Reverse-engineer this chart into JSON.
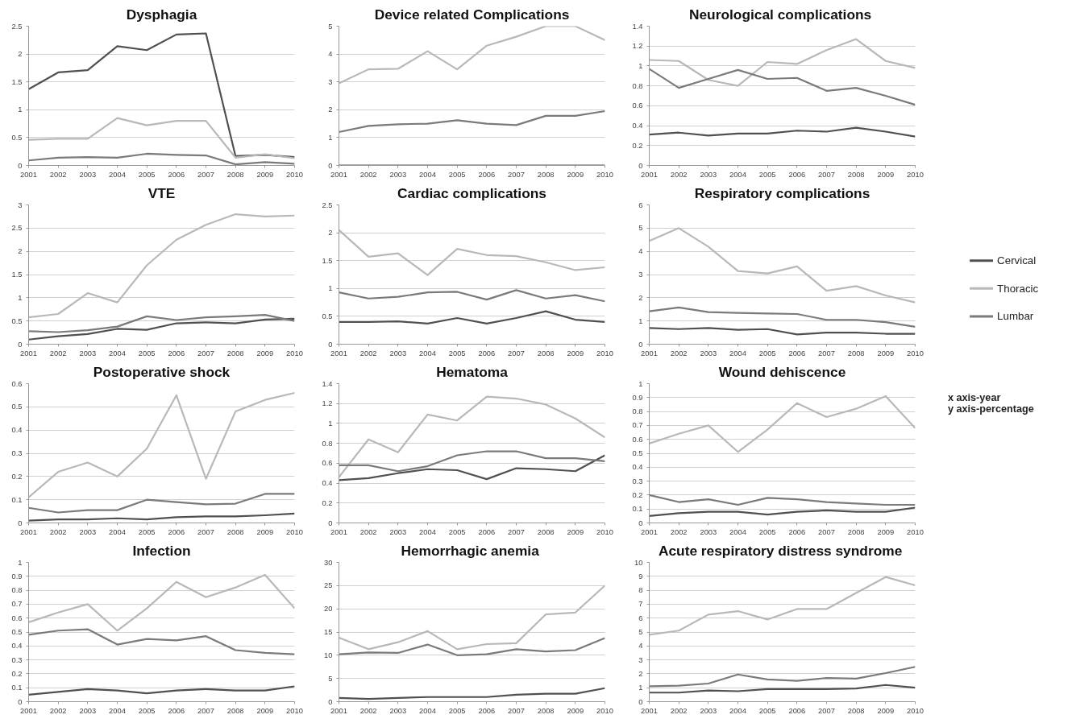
{
  "chart_data": [
    {
      "type": "line",
      "title": "Dysphagia",
      "categories": [
        "2001",
        "2002",
        "2003",
        "2004",
        "2005",
        "2006",
        "2007",
        "2008",
        "2009",
        "2010"
      ],
      "ylim": [
        0,
        2.5
      ],
      "yticks": [
        0,
        0.5,
        1,
        1.5,
        2,
        2.5
      ],
      "grid": "y",
      "legend": "right",
      "series": [
        {
          "name": "Cervical",
          "color": "#505050",
          "values": [
            1.37,
            1.67,
            1.71,
            2.14,
            2.07,
            2.35,
            2.37,
            0.17,
            0.19,
            0.15
          ]
        },
        {
          "name": "Thoracic",
          "color": "#b8b8b8",
          "values": [
            0.46,
            0.48,
            0.48,
            0.85,
            0.72,
            0.8,
            0.8,
            0.14,
            0.2,
            0.13
          ]
        },
        {
          "name": "Lumbar",
          "color": "#7a7a7a",
          "values": [
            0.09,
            0.14,
            0.15,
            0.14,
            0.21,
            0.19,
            0.18,
            0.02,
            0.06,
            0.03
          ]
        }
      ]
    },
    {
      "type": "line",
      "title": "Device related Complications",
      "categories": [
        "2001",
        "2002",
        "2003",
        "2004",
        "2005",
        "2006",
        "2007",
        "2008",
        "2009",
        "2010"
      ],
      "ylim": [
        0,
        5
      ],
      "yticks": [
        0,
        1,
        2,
        3,
        4,
        5
      ],
      "grid": "y",
      "series": [
        {
          "color": "#505050",
          "values": [
            0,
            0,
            0,
            0,
            0,
            0,
            0,
            0,
            0,
            0
          ]
        },
        {
          "color": "#b8b8b8",
          "values": [
            2.95,
            3.45,
            3.47,
            4.1,
            3.45,
            4.3,
            4.62,
            5.0,
            5.0,
            4.5
          ]
        },
        {
          "color": "#7a7a7a",
          "values": [
            1.2,
            1.42,
            1.48,
            1.5,
            1.62,
            1.5,
            1.45,
            1.78,
            1.78,
            1.95
          ]
        }
      ]
    },
    {
      "type": "line",
      "title": "Neurological  complications",
      "categories": [
        "2001",
        "2002",
        "2003",
        "2004",
        "2005",
        "2006",
        "2007",
        "2008",
        "2009",
        "2010"
      ],
      "ylim": [
        0,
        1.4
      ],
      "yticks": [
        0,
        0.2,
        0.4,
        0.6,
        0.8,
        1,
        1.2,
        1.4
      ],
      "grid": "y",
      "series": [
        {
          "color": "#505050",
          "values": [
            0.31,
            0.33,
            0.3,
            0.32,
            0.32,
            0.35,
            0.34,
            0.38,
            0.34,
            0.29
          ]
        },
        {
          "color": "#b8b8b8",
          "values": [
            1.06,
            1.05,
            0.86,
            0.8,
            1.04,
            1.02,
            1.16,
            1.27,
            1.05,
            0.98
          ]
        },
        {
          "color": "#7a7a7a",
          "values": [
            0.97,
            0.78,
            0.87,
            0.96,
            0.87,
            0.88,
            0.75,
            0.78,
            0.7,
            0.61
          ]
        }
      ]
    },
    {
      "type": "line",
      "title": "VTE",
      "categories": [
        "2001",
        "2002",
        "2003",
        "2004",
        "2005",
        "2006",
        "2007",
        "2008",
        "2009",
        "2010"
      ],
      "ylim": [
        0,
        3
      ],
      "yticks": [
        0,
        0.5,
        1,
        1.5,
        2,
        2.5,
        3
      ],
      "grid": "y",
      "series": [
        {
          "color": "#505050",
          "values": [
            0.1,
            0.17,
            0.22,
            0.33,
            0.31,
            0.45,
            0.47,
            0.45,
            0.53,
            0.55
          ]
        },
        {
          "color": "#b8b8b8",
          "values": [
            0.58,
            0.65,
            1.1,
            0.9,
            1.7,
            2.25,
            2.57,
            2.8,
            2.75,
            2.77
          ]
        },
        {
          "color": "#7a7a7a",
          "values": [
            0.28,
            0.26,
            0.3,
            0.38,
            0.6,
            0.52,
            0.58,
            0.6,
            0.63,
            0.5
          ]
        }
      ]
    },
    {
      "type": "line",
      "title": "Cardiac complications",
      "categories": [
        "2001",
        "2002",
        "2003",
        "2004",
        "2005",
        "2006",
        "2007",
        "2008",
        "2009",
        "2010"
      ],
      "ylim": [
        0,
        2.5
      ],
      "yticks": [
        0,
        0.5,
        1,
        1.5,
        2,
        2.5
      ],
      "grid": "y",
      "series": [
        {
          "color": "#505050",
          "values": [
            0.4,
            0.4,
            0.41,
            0.37,
            0.47,
            0.37,
            0.47,
            0.59,
            0.44,
            0.4
          ]
        },
        {
          "color": "#b8b8b8",
          "values": [
            2.05,
            1.57,
            1.63,
            1.24,
            1.71,
            1.6,
            1.58,
            1.47,
            1.33,
            1.38
          ]
        },
        {
          "color": "#7a7a7a",
          "values": [
            0.93,
            0.82,
            0.85,
            0.93,
            0.94,
            0.8,
            0.97,
            0.82,
            0.88,
            0.77
          ]
        }
      ]
    },
    {
      "type": "line",
      "title": "Respiratory complications",
      "categories": [
        "2001",
        "2002",
        "2003",
        "2004",
        "2005",
        "2006",
        "2007",
        "2008",
        "2009",
        "2010"
      ],
      "ylim": [
        0,
        6
      ],
      "yticks": [
        0,
        1,
        2,
        3,
        4,
        5,
        6
      ],
      "grid": "y",
      "series": [
        {
          "color": "#505050",
          "values": [
            0.7,
            0.65,
            0.7,
            0.62,
            0.65,
            0.42,
            0.5,
            0.5,
            0.45,
            0.45
          ]
        },
        {
          "color": "#b8b8b8",
          "values": [
            4.45,
            5.0,
            4.2,
            3.15,
            3.05,
            3.35,
            2.3,
            2.5,
            2.1,
            1.8
          ]
        },
        {
          "color": "#7a7a7a",
          "values": [
            1.42,
            1.58,
            1.38,
            1.35,
            1.32,
            1.3,
            1.05,
            1.05,
            0.95,
            0.75
          ]
        }
      ]
    },
    {
      "type": "line",
      "title": "Postoperative shock",
      "categories": [
        "2001",
        "2002",
        "2003",
        "2004",
        "2005",
        "2006",
        "2007",
        "2008",
        "2009",
        "2010"
      ],
      "ylim": [
        0,
        0.6
      ],
      "yticks": [
        0,
        0.1,
        0.2,
        0.3,
        0.4,
        0.5,
        0.6
      ],
      "grid": "y",
      "series": [
        {
          "color": "#505050",
          "values": [
            0.01,
            0.015,
            0.015,
            0.02,
            0.015,
            0.025,
            0.028,
            0.028,
            0.033,
            0.04
          ]
        },
        {
          "color": "#b8b8b8",
          "values": [
            0.11,
            0.22,
            0.26,
            0.2,
            0.32,
            0.55,
            0.19,
            0.48,
            0.53,
            0.56
          ]
        },
        {
          "color": "#7a7a7a",
          "values": [
            0.065,
            0.045,
            0.055,
            0.055,
            0.1,
            0.09,
            0.08,
            0.083,
            0.125,
            0.125
          ]
        }
      ]
    },
    {
      "type": "line",
      "title": "Hematoma",
      "categories": [
        "2001",
        "2002",
        "2003",
        "2004",
        "2005",
        "2006",
        "2007",
        "2008",
        "2009",
        "2010"
      ],
      "ylim": [
        0,
        1.4
      ],
      "yticks": [
        0,
        0.2,
        0.4,
        0.6,
        0.8,
        1,
        1.2,
        1.4
      ],
      "grid": "y",
      "series": [
        {
          "color": "#505050",
          "values": [
            0.43,
            0.45,
            0.5,
            0.54,
            0.53,
            0.44,
            0.55,
            0.54,
            0.52,
            0.68
          ]
        },
        {
          "color": "#b8b8b8",
          "values": [
            0.46,
            0.84,
            0.71,
            1.09,
            1.03,
            1.27,
            1.25,
            1.19,
            1.05,
            0.86
          ]
        },
        {
          "color": "#7a7a7a",
          "values": [
            0.58,
            0.58,
            0.52,
            0.57,
            0.68,
            0.72,
            0.72,
            0.65,
            0.65,
            0.62
          ]
        }
      ]
    },
    {
      "type": "line",
      "title": "Wound dehiscence",
      "categories": [
        "2001",
        "2002",
        "2003",
        "2004",
        "2005",
        "2006",
        "2007",
        "2008",
        "2009",
        "2010"
      ],
      "ylim": [
        0,
        1
      ],
      "yticks": [
        0,
        0.1,
        0.2,
        0.3,
        0.4,
        0.5,
        0.6,
        0.7,
        0.8,
        0.9,
        1
      ],
      "grid": "y",
      "annotations": [
        "x axis-year",
        "y axis-percentage"
      ],
      "series": [
        {
          "color": "#505050",
          "values": [
            0.05,
            0.07,
            0.08,
            0.08,
            0.06,
            0.08,
            0.09,
            0.08,
            0.08,
            0.11
          ]
        },
        {
          "color": "#b8b8b8",
          "values": [
            0.57,
            0.64,
            0.7,
            0.51,
            0.67,
            0.86,
            0.76,
            0.82,
            0.91,
            0.68
          ]
        },
        {
          "color": "#7a7a7a",
          "values": [
            0.2,
            0.15,
            0.17,
            0.13,
            0.18,
            0.17,
            0.15,
            0.14,
            0.13,
            0.13
          ]
        }
      ]
    },
    {
      "type": "line",
      "title": "Infection",
      "categories": [
        "2001",
        "2002",
        "2003",
        "2004",
        "2005",
        "2006",
        "2007",
        "2008",
        "2009",
        "2010"
      ],
      "ylim": [
        0,
        1
      ],
      "yticks": [
        0,
        0.1,
        0.2,
        0.3,
        0.4,
        0.5,
        0.6,
        0.7,
        0.8,
        0.9,
        1
      ],
      "grid": "y",
      "series": [
        {
          "color": "#505050",
          "values": [
            0.05,
            0.07,
            0.09,
            0.08,
            0.06,
            0.08,
            0.09,
            0.08,
            0.08,
            0.11
          ]
        },
        {
          "color": "#b8b8b8",
          "values": [
            0.57,
            0.64,
            0.7,
            0.51,
            0.67,
            0.86,
            0.75,
            0.82,
            0.91,
            0.67
          ]
        },
        {
          "color": "#7a7a7a",
          "values": [
            0.48,
            0.51,
            0.52,
            0.41,
            0.45,
            0.44,
            0.47,
            0.37,
            0.35,
            0.34
          ]
        }
      ]
    },
    {
      "type": "line",
      "title": "Hemorrhagic  anemia",
      "categories": [
        "2001",
        "2002",
        "2003",
        "2004",
        "2005",
        "2006",
        "2007",
        "2008",
        "2009",
        "2010"
      ],
      "ylim": [
        0,
        30
      ],
      "yticks": [
        0,
        5,
        10,
        15,
        20,
        25,
        30
      ],
      "grid": "y",
      "series": [
        {
          "color": "#505050",
          "values": [
            0.8,
            0.6,
            0.8,
            1.0,
            1.0,
            1.0,
            1.5,
            1.7,
            1.7,
            2.9
          ]
        },
        {
          "color": "#b8b8b8",
          "values": [
            13.8,
            11.3,
            12.8,
            15.2,
            11.3,
            12.4,
            12.6,
            18.8,
            19.2,
            25.0
          ]
        },
        {
          "color": "#7a7a7a",
          "values": [
            10.2,
            10.6,
            10.5,
            12.3,
            10.0,
            10.2,
            11.3,
            10.8,
            11.1,
            13.7
          ]
        }
      ]
    },
    {
      "type": "line",
      "title": "Acute  respiratory distress syndrome",
      "categories": [
        "2001",
        "2002",
        "2003",
        "2004",
        "2005",
        "2006",
        "2007",
        "2008",
        "2009",
        "2010"
      ],
      "ylim": [
        0,
        10
      ],
      "yticks": [
        0,
        1,
        2,
        3,
        4,
        5,
        6,
        7,
        8,
        9,
        10
      ],
      "grid": "y",
      "series": [
        {
          "color": "#505050",
          "values": [
            0.65,
            0.65,
            0.8,
            0.75,
            0.9,
            0.9,
            0.9,
            0.95,
            1.2,
            1.0
          ]
        },
        {
          "color": "#b8b8b8",
          "values": [
            4.8,
            5.1,
            6.25,
            6.5,
            5.9,
            6.65,
            6.65,
            7.8,
            8.95,
            8.35
          ]
        },
        {
          "color": "#7a7a7a",
          "values": [
            1.1,
            1.15,
            1.3,
            1.95,
            1.6,
            1.5,
            1.7,
            1.65,
            2.05,
            2.5
          ]
        }
      ]
    }
  ]
}
